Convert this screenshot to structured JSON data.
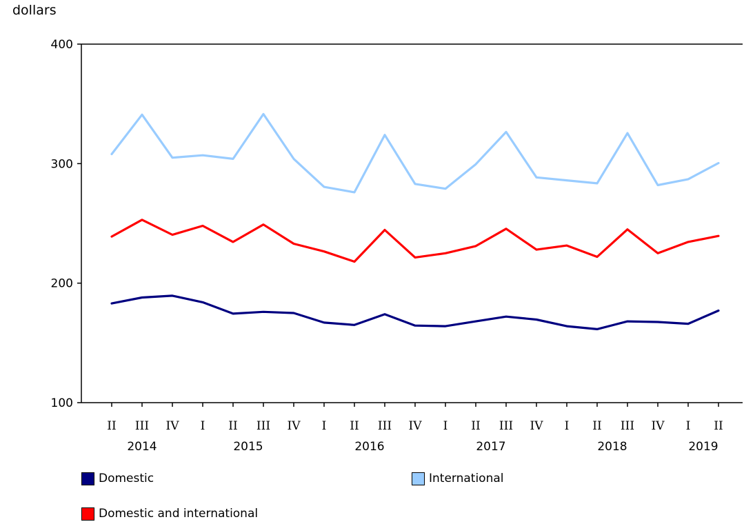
{
  "chart_data": {
    "type": "line",
    "ylabel": "dollars",
    "ylim": [
      100,
      400
    ],
    "yticks": [
      100,
      200,
      300,
      400
    ],
    "categories": [
      "II",
      "III",
      "IV",
      "I",
      "II",
      "III",
      "IV",
      "I",
      "II",
      "III",
      "IV",
      "I",
      "II",
      "III",
      "IV",
      "I",
      "II",
      "III",
      "IV",
      "I",
      "II"
    ],
    "years": [
      {
        "label": "2014",
        "start": 0,
        "end": 2
      },
      {
        "label": "2015",
        "start": 3,
        "end": 6
      },
      {
        "label": "2016",
        "start": 7,
        "end": 10
      },
      {
        "label": "2017",
        "start": 11,
        "end": 14
      },
      {
        "label": "2018",
        "start": 15,
        "end": 18
      },
      {
        "label": "2019",
        "start": 19,
        "end": 20
      }
    ],
    "series": [
      {
        "name": "Domestic",
        "color": "#000080",
        "values": [
          183,
          188,
          189.5,
          184,
          174.5,
          176,
          175,
          167,
          165,
          174,
          164.5,
          164,
          168,
          172,
          169.5,
          164,
          161.5,
          168,
          167.5,
          166,
          177
        ]
      },
      {
        "name": "International",
        "color": "#99ccff",
        "values": [
          308,
          341,
          305,
          307,
          304,
          341.5,
          304,
          280.5,
          276,
          324,
          283,
          279,
          299.5,
          326.5,
          288.5,
          286,
          283.5,
          325.5,
          282,
          287,
          300.5
        ]
      },
      {
        "name": "Domestic and international",
        "color": "#ff0000",
        "values": [
          239,
          253,
          240.5,
          248,
          234.5,
          249,
          233,
          226.5,
          218,
          244.5,
          221.5,
          225,
          231,
          245.5,
          228,
          231.5,
          222,
          245,
          225,
          234.5,
          239.5
        ]
      }
    ],
    "grid": false,
    "legend_position": "bottom"
  },
  "legend": [
    {
      "label": "Domestic",
      "color": "#000080"
    },
    {
      "label": "International",
      "color": "#99ccff"
    },
    {
      "label": "Domestic and international",
      "color": "#ff0000"
    }
  ]
}
